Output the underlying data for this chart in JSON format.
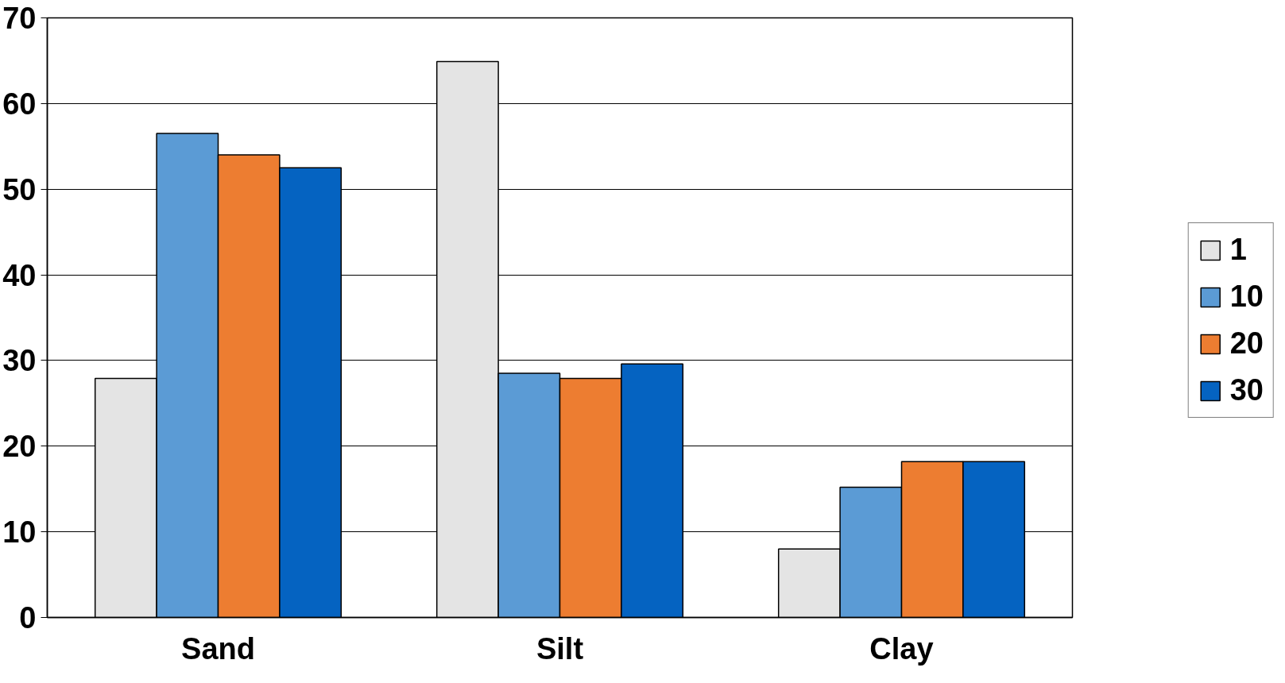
{
  "chart_data": {
    "type": "bar",
    "categories": [
      "Sand",
      "Silt",
      "Clay"
    ],
    "series": [
      {
        "name": "1",
        "color": "#e4e4e4",
        "values": [
          27.9,
          64.9,
          8.0
        ]
      },
      {
        "name": "10",
        "color": "#5b9bd5",
        "values": [
          56.5,
          28.5,
          15.2
        ]
      },
      {
        "name": "20",
        "color": "#ed7d31",
        "values": [
          54.0,
          27.9,
          18.2
        ]
      },
      {
        "name": "30",
        "color": "#0563c1",
        "values": [
          52.5,
          29.6,
          18.2
        ]
      }
    ],
    "ylim": [
      0,
      70
    ],
    "yticks": [
      0,
      10,
      20,
      30,
      40,
      50,
      60,
      70
    ],
    "grid": "y",
    "legend": "right"
  }
}
